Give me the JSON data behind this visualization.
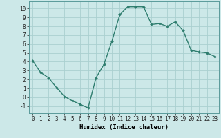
{
  "x": [
    0,
    1,
    2,
    3,
    4,
    5,
    6,
    7,
    8,
    9,
    10,
    11,
    12,
    13,
    14,
    15,
    16,
    17,
    18,
    19,
    20,
    21,
    22,
    23
  ],
  "y": [
    4.1,
    2.8,
    2.2,
    1.1,
    0.1,
    -0.4,
    -0.8,
    -1.2,
    2.2,
    3.7,
    6.3,
    9.3,
    10.2,
    10.2,
    10.2,
    8.2,
    8.3,
    8.0,
    8.5,
    7.5,
    5.3,
    5.1,
    5.0,
    4.6
  ],
  "line_color": "#2e7d6e",
  "marker": "D",
  "markersize": 2.0,
  "linewidth": 1.0,
  "xlabel": "Humidex (Indice chaleur)",
  "xlim": [
    -0.5,
    23.5
  ],
  "ylim": [
    -1.8,
    10.8
  ],
  "xticks": [
    0,
    1,
    2,
    3,
    4,
    5,
    6,
    7,
    8,
    9,
    10,
    11,
    12,
    13,
    14,
    15,
    16,
    17,
    18,
    19,
    20,
    21,
    22,
    23
  ],
  "yticks": [
    -1,
    0,
    1,
    2,
    3,
    4,
    5,
    6,
    7,
    8,
    9,
    10
  ],
  "bg_color": "#cce8e8",
  "grid_color": "#aad0d0",
  "tick_fontsize": 5.5,
  "xlabel_fontsize": 6.5,
  "font_family": "monospace"
}
